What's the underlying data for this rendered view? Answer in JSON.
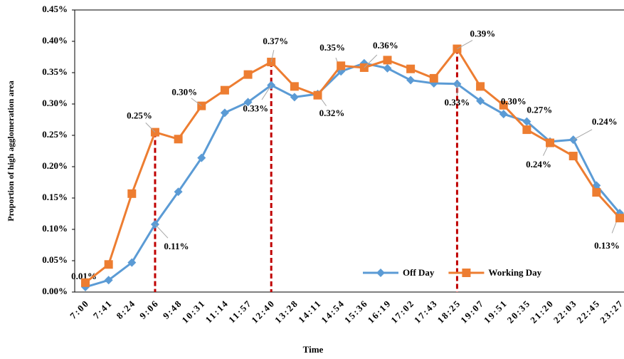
{
  "chart_data": {
    "type": "line",
    "x_label": "Time",
    "y_label": "Proportion of  high agglomeration area",
    "categories": [
      "7:00",
      "7:41",
      "8:24",
      "9:06",
      "9:48",
      "10:31",
      "11:14",
      "11:57",
      "12:40",
      "13:28",
      "14:11",
      "14:54",
      "15:36",
      "16:19",
      "17:02",
      "17:43",
      "18:25",
      "19:07",
      "19:51",
      "20:35",
      "21:20",
      "22:03",
      "22:45",
      "23:27"
    ],
    "series": [
      {
        "name": "Off Day",
        "color": "#5b9bd5",
        "marker": "diamond",
        "values": [
          0.008,
          0.019,
          0.047,
          0.108,
          0.16,
          0.214,
          0.286,
          0.303,
          0.33,
          0.311,
          0.316,
          0.352,
          0.365,
          0.357,
          0.338,
          0.333,
          0.332,
          0.305,
          0.284,
          0.272,
          0.24,
          0.243,
          0.17,
          0.126
        ],
        "value_labels": [
          "0.01%",
          null,
          null,
          "0.11%",
          null,
          null,
          null,
          null,
          "0.33%",
          null,
          "0.32%",
          "0.35%",
          null,
          null,
          null,
          null,
          "0.33%",
          null,
          null,
          "0.27%",
          "0.24%",
          "0.24%",
          null,
          "0.13%"
        ]
      },
      {
        "name": "Working Day",
        "color": "#ed7d31",
        "marker": "square",
        "values": [
          0.015,
          0.044,
          0.157,
          0.255,
          0.244,
          0.297,
          0.322,
          0.347,
          0.367,
          0.328,
          0.314,
          0.361,
          0.358,
          0.37,
          0.356,
          0.341,
          0.388,
          0.328,
          0.298,
          0.259,
          0.238,
          0.217,
          0.159,
          0.118
        ],
        "value_labels": [
          null,
          null,
          null,
          "0.25%",
          null,
          "0.30%",
          null,
          null,
          "0.37%",
          null,
          null,
          null,
          "0.36%",
          null,
          null,
          null,
          "0.39%",
          null,
          "0.30%",
          null,
          null,
          null,
          null,
          null
        ]
      }
    ],
    "reference_lines": {
      "categories": [
        "9:06",
        "12:40",
        "18:25"
      ],
      "color": "#c00000",
      "style": "dashed"
    },
    "ylim": [
      0,
      0.45
    ],
    "yticks": [
      {
        "value": 0,
        "label": "0.00%"
      },
      {
        "value": 0.05,
        "label": "0.05%"
      },
      {
        "value": 0.1,
        "label": "0.10%"
      },
      {
        "value": 0.15,
        "label": "0.15%"
      },
      {
        "value": 0.2,
        "label": "0.20%"
      },
      {
        "value": 0.25,
        "label": "0.25%"
      },
      {
        "value": 0.3,
        "label": "0.30%"
      },
      {
        "value": 0.35,
        "label": "0.35%"
      },
      {
        "value": 0.4,
        "label": "0.40%"
      },
      {
        "value": 0.45,
        "label": "0.45%"
      }
    ],
    "legend": "lower right",
    "grid": false
  }
}
